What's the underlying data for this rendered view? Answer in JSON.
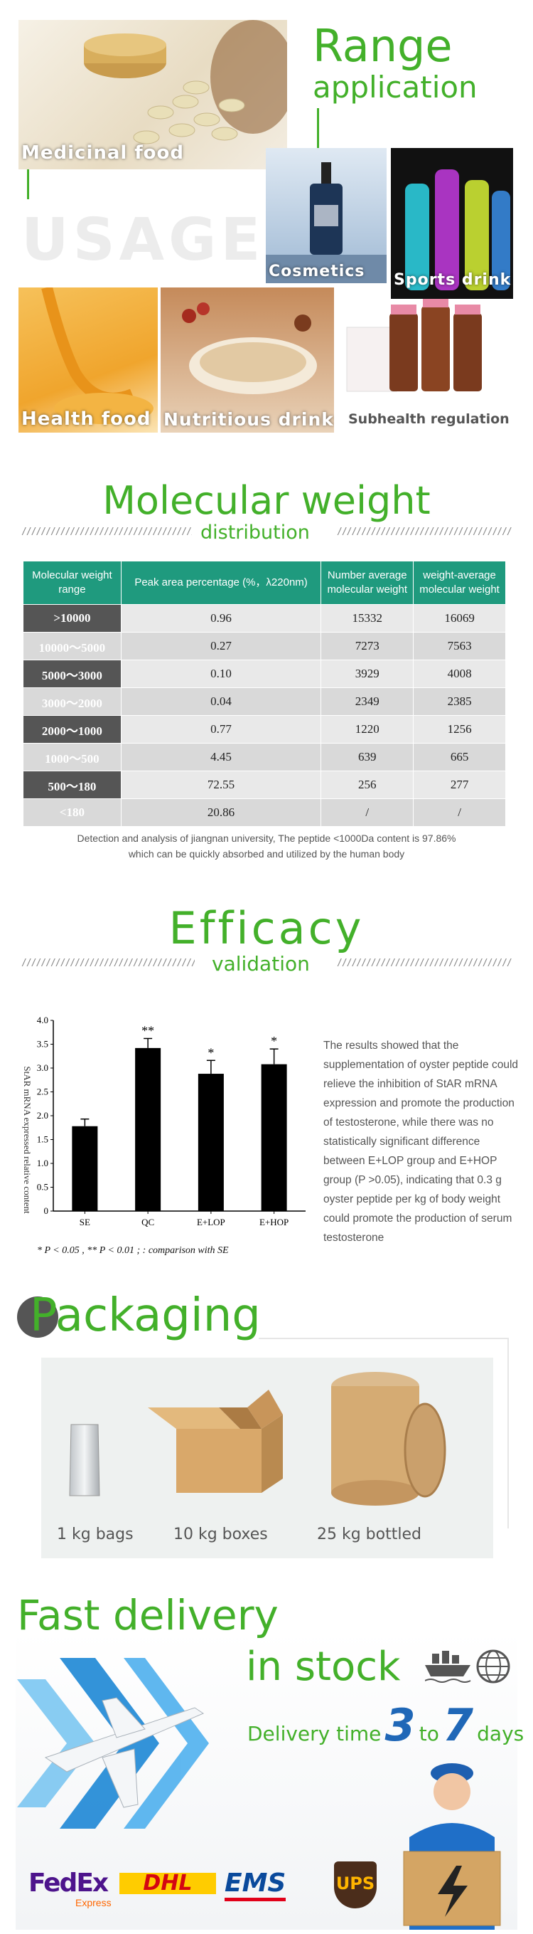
{
  "range": {
    "title_line1": "Range",
    "title_line2": "application",
    "watermark": "USAGE",
    "items": [
      {
        "label": "Medicinal food"
      },
      {
        "label": "Cosmetics"
      },
      {
        "label": "Sports drink"
      },
      {
        "label": "Health food"
      },
      {
        "label": "Nutritious drinks"
      },
      {
        "label": "Subhealth regulation"
      }
    ]
  },
  "molecular": {
    "title": "Molecular weight",
    "subtitle": "distribution",
    "headers": [
      "Molecular weight range",
      "Peak area percentage (%，λ220nm)",
      "Number average molecular weight",
      "weight-average molecular weight"
    ],
    "rows": [
      [
        ">10000",
        "0.96",
        "15332",
        "16069"
      ],
      [
        "10000～5000",
        "0.27",
        "7273",
        "7563"
      ],
      [
        "5000～3000",
        "0.10",
        "3929",
        "4008"
      ],
      [
        "3000～2000",
        "0.04",
        "2349",
        "2385"
      ],
      [
        "2000～1000",
        "0.77",
        "1220",
        "1256"
      ],
      [
        "1000～500",
        "4.45",
        "639",
        "665"
      ],
      [
        "500～180",
        "72.55",
        "256",
        "277"
      ],
      [
        "<180",
        "20.86",
        "/",
        "/"
      ]
    ],
    "note_line1": "Detection and analysis of jiangnan university, The peptide <1000Da content is 97.86%",
    "note_line2": "which can be quickly absorbed and utilized by the human body"
  },
  "efficacy": {
    "title": "Efficacy",
    "subtitle": "validation",
    "description": "The results showed that the supplementation of oyster peptide could relieve the inhibition of StAR mRNA expression and promote the production of testosterone, while there was no statistically significant difference between E+LOP group and E+HOP group (P >0.05), indicating that 0.3 g oyster peptide per kg of body weight could promote the production of serum testosterone",
    "footnote": "* P < 0.05 , ** P < 0.01 ;    : comparison with SE"
  },
  "chart_data": {
    "type": "bar",
    "ylabel": "StAR mRNA expressed relative content",
    "ylim": [
      0,
      4.0
    ],
    "yticks": [
      "0",
      "0.5",
      "1.0",
      "1.5",
      "2.0",
      "2.5",
      "3.0",
      "3.5",
      "4.0"
    ],
    "categories": [
      "SE",
      "QC",
      "E+LOP",
      "E+HOP"
    ],
    "values": [
      1.78,
      3.42,
      2.88,
      3.08
    ],
    "errors": [
      0.15,
      0.2,
      0.28,
      0.32
    ],
    "annotations": [
      "",
      "**",
      "*",
      "*"
    ],
    "color": "#000000"
  },
  "packaging": {
    "title_first_letter": "P",
    "title_rest": "ackaging",
    "items": [
      {
        "label": "1 kg bags"
      },
      {
        "label": "10 kg boxes"
      },
      {
        "label": "25 kg bottled"
      }
    ]
  },
  "delivery": {
    "title_line1": "Fast delivery",
    "title_line2": "in stock",
    "time_prefix": "Delivery time",
    "time_from": "3",
    "time_to_word": "to",
    "time_to": "7",
    "time_suffix": "days",
    "carriers": [
      "FedEx",
      "Express",
      "DHL",
      "EMS",
      "UPS"
    ]
  },
  "colors": {
    "accent": "#43b02a",
    "table_header": "#1f9a7e",
    "delivery_blue": "#1f67b7"
  }
}
